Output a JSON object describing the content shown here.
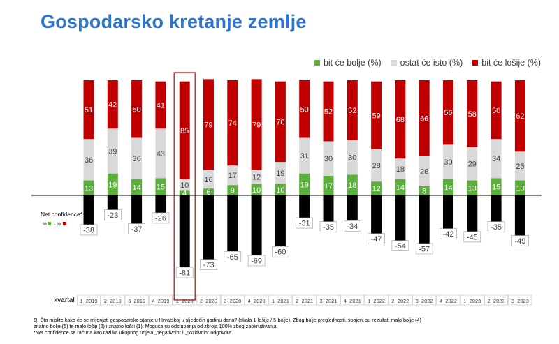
{
  "title": "Gospodarsko kretanje zemlje",
  "legend": [
    {
      "label": "bit će bolje (%)",
      "color": "#5cae3d"
    },
    {
      "label": "ostat će isto (%)",
      "color": "#d9d9d9"
    },
    {
      "label": "bit će lošije (%)",
      "color": "#c00000"
    }
  ],
  "net_label": "Net confidence*",
  "net_formula": {
    "a": "%",
    "mid": "- %"
  },
  "xaxis_label": "kvartal",
  "highlight_category": "1_2020",
  "colors": {
    "better": "#5cae3d",
    "same": "#d9d9d9",
    "worse": "#c00000",
    "net": "#000000",
    "highlight": "#c00000"
  },
  "chart_data": {
    "type": "bar",
    "stacked": true,
    "categories": [
      "1_2019",
      "2_2019",
      "3_2019",
      "4_2019",
      "1_2020",
      "2_2020",
      "3_2020",
      "4_2020",
      "1_2021",
      "2_2021",
      "3_2021",
      "4_2021",
      "1_2022",
      "2_2022",
      "3_2022",
      "4_2022",
      "1_2023",
      "2_2023",
      "3_2023"
    ],
    "series": [
      {
        "name": "bit će bolje (%)",
        "values": [
          13,
          19,
          14,
          15,
          4,
          6,
          9,
          10,
          10,
          19,
          17,
          18,
          12,
          14,
          8,
          14,
          13,
          15,
          13
        ]
      },
      {
        "name": "ostat će isto (%)",
        "values": [
          36,
          39,
          36,
          43,
          10,
          16,
          17,
          12,
          19,
          31,
          30,
          30,
          28,
          18,
          26,
          30,
          29,
          34,
          25
        ]
      },
      {
        "name": "bit će lošije (%)",
        "values": [
          51,
          42,
          50,
          41,
          85,
          79,
          74,
          79,
          70,
          50,
          52,
          52,
          59,
          68,
          66,
          56,
          58,
          50,
          62
        ]
      },
      {
        "name": "Net confidence*",
        "values": [
          -38,
          -23,
          -37,
          -26,
          -81,
          -73,
          -65,
          -69,
          -60,
          -31,
          -35,
          -34,
          -47,
          -54,
          -57,
          -42,
          -45,
          -35,
          -49
        ]
      }
    ]
  },
  "footnote": [
    "Q: Što mislite kako će se mijenjati gospodarsko stanje u Hrvatskoj u sljedećih godinu dana? (skala 1-lošije / 5-bolje). Zbog bolje preglednosti, spojeni su rezultati malo bolje (4) i",
    "znatno bolje (5) te malo lošiji (2) i znatno lošiji (1). Moguća su odstupanja od zbroja 100% zbog zaokruživanja.",
    "*Net confidence se računa kao razlika ukupnog udjela „negativnih“ i „pozitivnih“ odgovora."
  ]
}
